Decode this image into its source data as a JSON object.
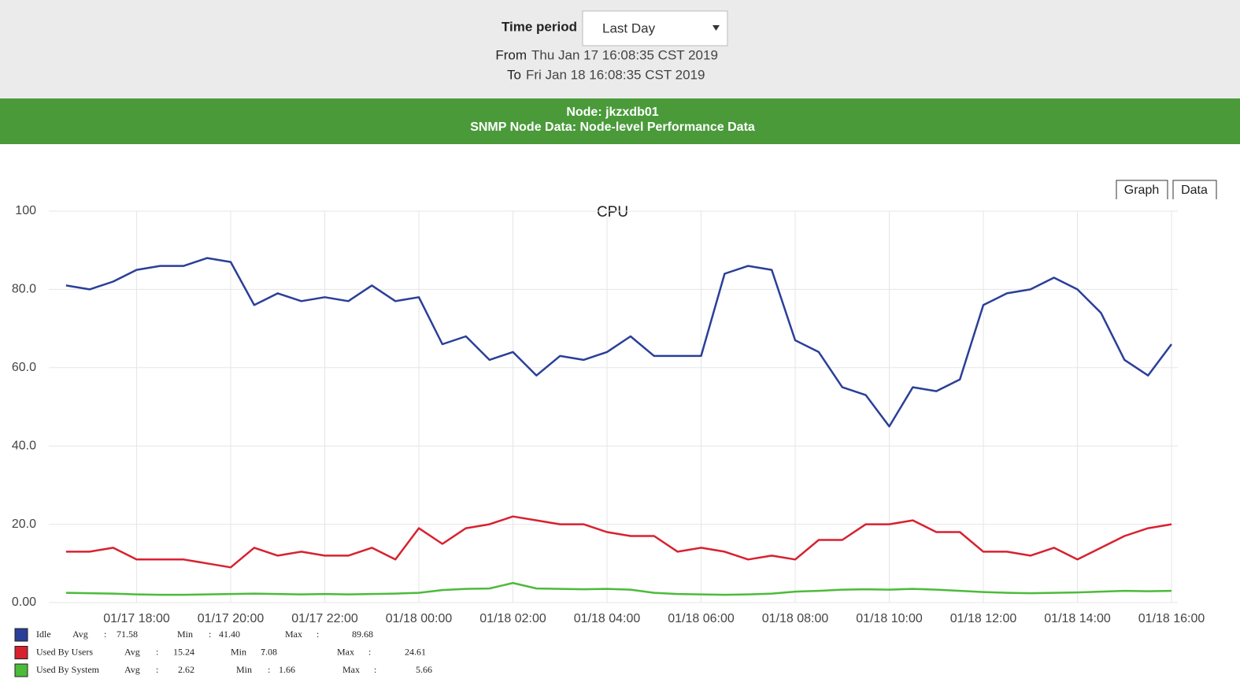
{
  "header": {
    "time_period_label": "Time period",
    "time_period_value": "Last Day",
    "from_label": "From",
    "from_value": "Thu Jan 17 16:08:35 CST 2019",
    "to_label": "To",
    "to_value": "Fri Jan 18 16:08:35 CST 2019"
  },
  "node_banner": {
    "node": "Node: jkzxdb01",
    "subtitle": "SNMP Node Data: Node-level Performance Data"
  },
  "tabs": [
    "Graph",
    "Data"
  ],
  "chart_data": {
    "type": "line",
    "title": "CPU",
    "x": [
      "01/17 16:30",
      "01/17 17:00",
      "01/17 17:30",
      "01/17 18:00",
      "01/17 18:30",
      "01/17 19:00",
      "01/17 19:30",
      "01/17 20:00",
      "01/17 20:30",
      "01/17 21:00",
      "01/17 21:30",
      "01/17 22:00",
      "01/17 22:30",
      "01/17 23:00",
      "01/17 23:30",
      "01/18 00:00",
      "01/18 00:30",
      "01/18 01:00",
      "01/18 01:30",
      "01/18 02:00",
      "01/18 02:30",
      "01/18 03:00",
      "01/18 03:30",
      "01/18 04:00",
      "01/18 04:30",
      "01/18 05:00",
      "01/18 05:30",
      "01/18 06:00",
      "01/18 06:30",
      "01/18 07:00",
      "01/18 07:30",
      "01/18 08:00",
      "01/18 08:30",
      "01/18 09:00",
      "01/18 09:30",
      "01/18 10:00",
      "01/18 10:30",
      "01/18 11:00",
      "01/18 11:30",
      "01/18 12:00",
      "01/18 12:30",
      "01/18 13:00",
      "01/18 13:30",
      "01/18 14:00",
      "01/18 14:30",
      "01/18 15:00",
      "01/18 15:30",
      "01/18 16:00"
    ],
    "xlim": [
      "01/17 16:08",
      "01/18 16:08"
    ],
    "xticks": [
      "01/17 18:00",
      "01/17 20:00",
      "01/17 22:00",
      "01/18 00:00",
      "01/18 02:00",
      "01/18 04:00",
      "01/18 06:00",
      "01/18 08:00",
      "01/18 10:00",
      "01/18 12:00",
      "01/18 14:00",
      "01/18 16:00"
    ],
    "ylim": [
      0,
      100
    ],
    "yticks": [
      {
        "value": 0,
        "label": "0.00"
      },
      {
        "value": 20,
        "label": "20.0"
      },
      {
        "value": 40,
        "label": "40.0"
      },
      {
        "value": 60,
        "label": "60.0"
      },
      {
        "value": 80,
        "label": "80.0"
      },
      100
    ],
    "grid": true,
    "series": [
      {
        "name": "Idle",
        "color": "#2a3f98",
        "stats": [
          {
            "label": "Avg",
            "value": "71.58"
          },
          {
            "label": "Min",
            "value": "41.40"
          },
          {
            "label": "Max",
            "value": "89.68"
          }
        ],
        "values": [
          81,
          80,
          82,
          85,
          86,
          86,
          88,
          87,
          76,
          79,
          77,
          78,
          77,
          81,
          77,
          78,
          66,
          68,
          62,
          64,
          58,
          63,
          62,
          64,
          68,
          63,
          63,
          63,
          84,
          86,
          85,
          67,
          64,
          55,
          53,
          45,
          55,
          54,
          57,
          76,
          79,
          80,
          83,
          80,
          74,
          62,
          58,
          66
        ]
      },
      {
        "name": "Used By Users",
        "color": "#d8212f",
        "stats": [
          {
            "label": "Avg",
            "value": "15.24"
          },
          {
            "label": "Min",
            "value": "7.08"
          },
          {
            "label": "Max",
            "value": "24.61"
          }
        ],
        "values": [
          13,
          13,
          14,
          11,
          11,
          11,
          10,
          9,
          14,
          12,
          13,
          12,
          12,
          14,
          11,
          19,
          15,
          19,
          20,
          22,
          21,
          20,
          20,
          18,
          17,
          17,
          13,
          14,
          13,
          11,
          12,
          11,
          16,
          16,
          20,
          20,
          21,
          18,
          18,
          13,
          13,
          12,
          14,
          11,
          14,
          17,
          19,
          20
        ]
      },
      {
        "name": "Used By System",
        "color": "#4cbb3a",
        "stats": [
          {
            "label": "Avg",
            "value": "2.62"
          },
          {
            "label": "Min",
            "value": "1.66"
          },
          {
            "label": "Max",
            "value": "5.66"
          }
        ],
        "values": [
          2.5,
          2.4,
          2.3,
          2.1,
          2,
          2,
          2.1,
          2.2,
          2.3,
          2.2,
          2.1,
          2.2,
          2.1,
          2.2,
          2.3,
          2.5,
          3.2,
          3.5,
          3.6,
          5,
          3.6,
          3.5,
          3.4,
          3.5,
          3.3,
          2.5,
          2.2,
          2.1,
          2,
          2.1,
          2.3,
          2.8,
          3,
          3.3,
          3.4,
          3.3,
          3.5,
          3.3,
          3,
          2.7,
          2.5,
          2.4,
          2.5,
          2.6,
          2.8,
          3,
          2.9,
          3
        ]
      }
    ]
  }
}
